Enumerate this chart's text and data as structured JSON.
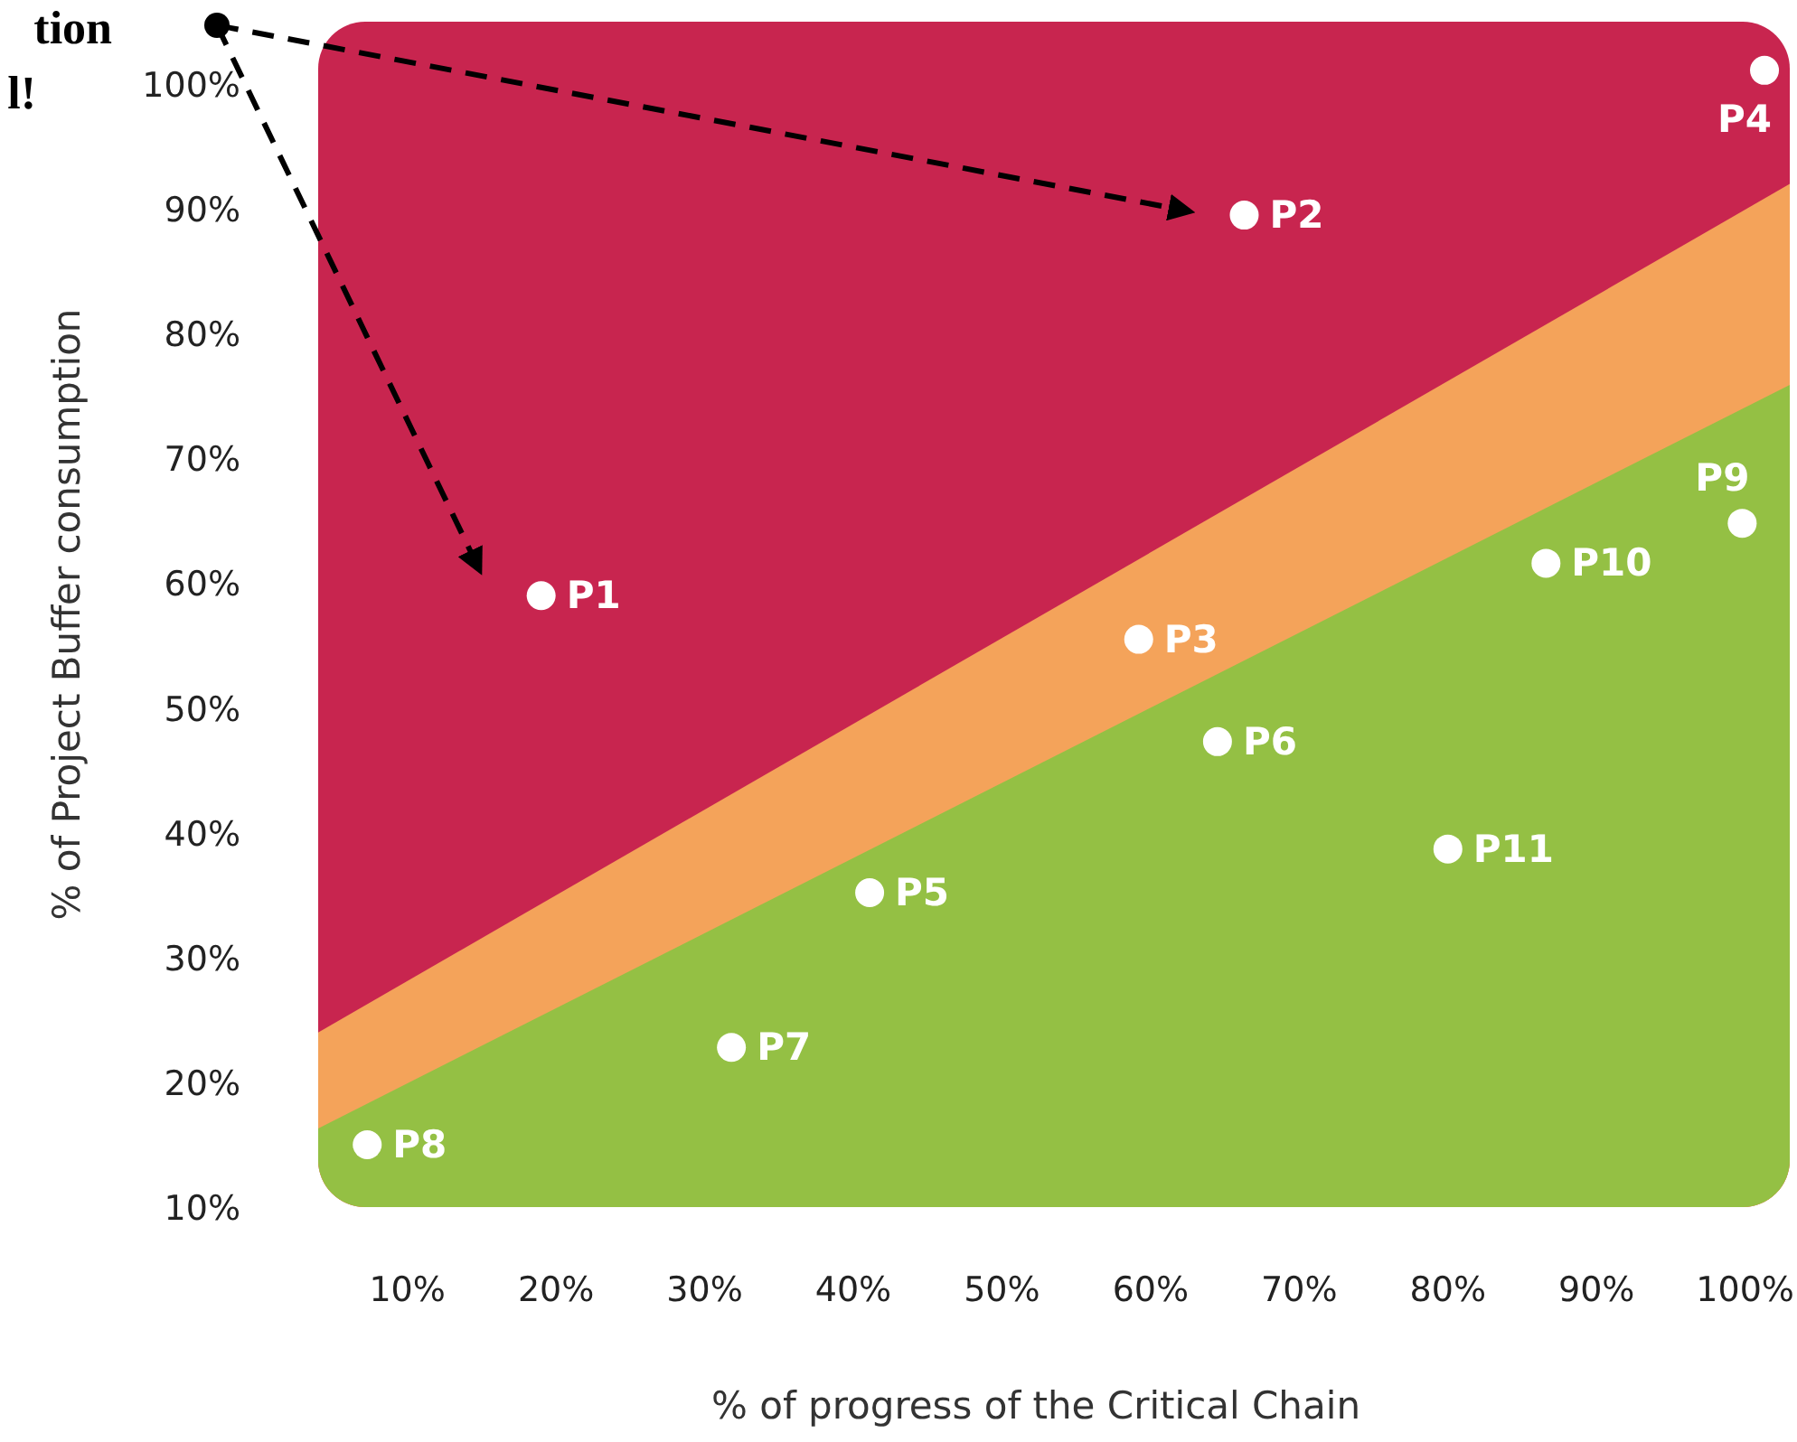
{
  "chart_data": {
    "type": "scatter",
    "xlabel": "% of progress of the Critical Chain",
    "ylabel": "% of Project Buffer consumption",
    "xlim": [
      4,
      103
    ],
    "ylim": [
      10,
      105
    ],
    "xticks": [
      {
        "value": 10,
        "label": "10%"
      },
      {
        "value": 20,
        "label": "20%"
      },
      {
        "value": 30,
        "label": "30%"
      },
      {
        "value": 40,
        "label": "40%"
      },
      {
        "value": 50,
        "label": "50%"
      },
      {
        "value": 60,
        "label": "60%"
      },
      {
        "value": 70,
        "label": "70%"
      },
      {
        "value": 80,
        "label": "80%"
      },
      {
        "value": 90,
        "label": "90%"
      },
      {
        "value": 100,
        "label": "100%"
      }
    ],
    "yticks": [
      {
        "value": 10,
        "label": "10%"
      },
      {
        "value": 20,
        "label": "20%"
      },
      {
        "value": 30,
        "label": "30%"
      },
      {
        "value": 40,
        "label": "40%"
      },
      {
        "value": 50,
        "label": "50%"
      },
      {
        "value": 60,
        "label": "60%"
      },
      {
        "value": 70,
        "label": "70%"
      },
      {
        "value": 80,
        "label": "80%"
      },
      {
        "value": 90,
        "label": "90%"
      },
      {
        "value": 100,
        "label": "100%"
      }
    ],
    "grid": false,
    "annotations": [
      "tion",
      "l!"
    ],
    "series": [
      {
        "type": "area",
        "color": "#f4a35a",
        "x": [
          4,
          103
        ],
        "values": [
          24,
          92
        ]
      },
      {
        "type": "area",
        "color": "#94c044",
        "x": [
          4,
          103
        ],
        "values": [
          16.3,
          75.9
        ]
      },
      {
        "color": "#ffffff",
        "x": [
          19,
          66.3,
          59.2,
          101.3,
          41.1,
          64.5,
          31.8,
          7.3,
          99.8,
          86.6,
          80
        ],
        "values": [
          59,
          89.5,
          55.5,
          101.1,
          35.2,
          47.3,
          22.8,
          15,
          64.8,
          61.6,
          38.7
        ],
        "value_labels": [
          "P1",
          "P2",
          "P3",
          "P4",
          "P5",
          "P6",
          "P7",
          "P8",
          "P9",
          "P10",
          "P11"
        ]
      }
    ]
  }
}
